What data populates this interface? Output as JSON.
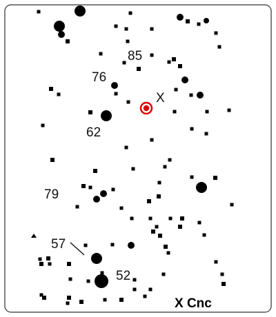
{
  "chart": {
    "title": "X Cnc",
    "variable_label": "X",
    "labels": {
      "l85": "85",
      "l76": "76",
      "l62": "62",
      "l79": "79",
      "l57": "57",
      "l52": "52"
    }
  },
  "colors": {
    "border": "#555555",
    "star": "#000000",
    "variable": "#e00000"
  }
}
